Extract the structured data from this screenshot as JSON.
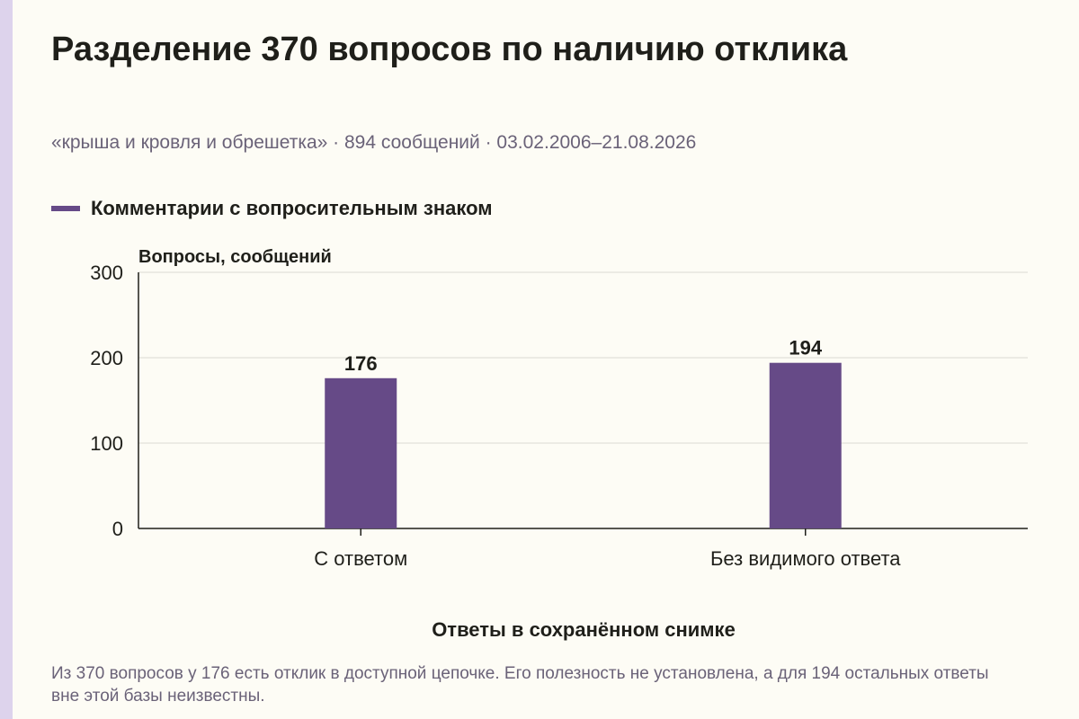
{
  "colors": {
    "accent": "#664a87",
    "text": "#1f1f1a",
    "muted": "#6a6278",
    "grid": "#dcdad2",
    "background": "#fdfcf5"
  },
  "chart_data": {
    "type": "bar",
    "title": "Разделение 370 вопросов по наличию отклика",
    "subtitle": "«крыша и кровля и обрешетка» · 894 сообщений · 03.02.2006–21.08.2026",
    "legend": "top-left",
    "grid": true,
    "categories": [
      "С ответом",
      "Без видимого ответа"
    ],
    "series": [
      {
        "name": "Комментарии с вопросительным знаком",
        "values": [
          176,
          194
        ]
      }
    ],
    "data_labels": [
      "176",
      "194"
    ],
    "xlabel": "Ответы в сохранённом снимке",
    "ylabel": "Вопросы, сообщений",
    "ylim": [
      0,
      300
    ],
    "yticks": [
      0,
      100,
      200,
      300
    ]
  },
  "footnote": "Из 370 вопросов у 176 есть отклик в доступной цепочке. Его полезность не установлена, а для 194 остальных ответы вне этой базы неизвестны."
}
